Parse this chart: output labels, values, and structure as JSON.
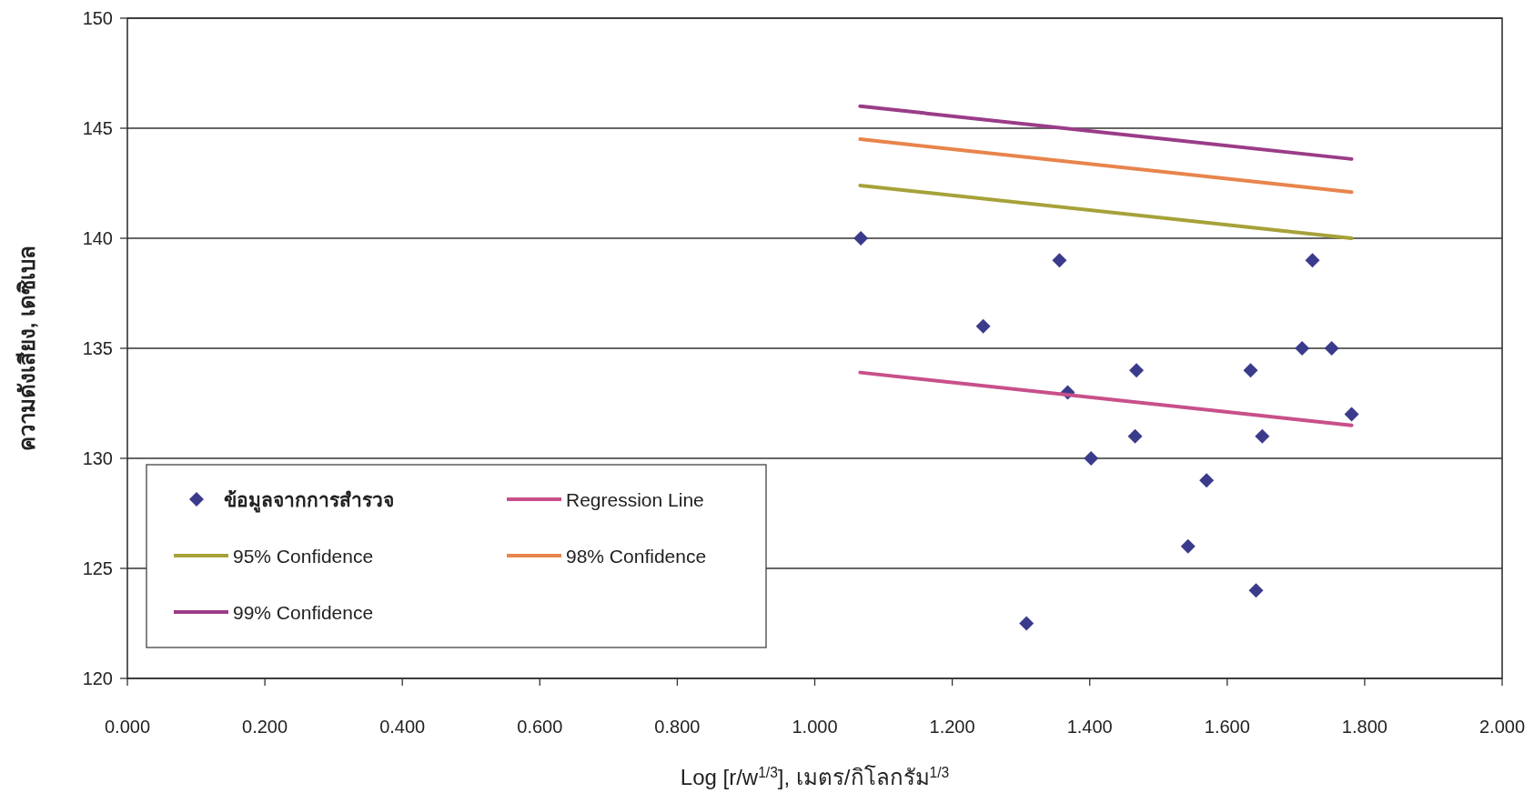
{
  "chart_data": {
    "type": "scatter",
    "xlabel": "Log [r/w$^{1/3}$],  เมตร/กิโลกรัม$^{1/3}$",
    "ylabel": "ความดังเสียง,  เดซิเบล",
    "xlim": [
      0,
      2
    ],
    "ylim": [
      120,
      150
    ],
    "xticks": [
      {
        "value": 0,
        "label": "0.000"
      },
      {
        "value": 0.2,
        "label": "0.200"
      },
      {
        "value": 0.4,
        "label": "0.400"
      },
      {
        "value": 0.6,
        "label": "0.600"
      },
      {
        "value": 0.8,
        "label": "0.800"
      },
      {
        "value": 1,
        "label": "1.000"
      },
      {
        "value": 1.2,
        "label": "1.200"
      },
      {
        "value": 1.4,
        "label": "1.400"
      },
      {
        "value": 1.6,
        "label": "1.600"
      },
      {
        "value": 1.8,
        "label": "1.800"
      },
      {
        "value": 2,
        "label": "2.000"
      }
    ],
    "yticks": [
      120,
      125,
      130,
      135,
      140,
      145,
      150
    ],
    "grid": "y",
    "legend": "bottom left",
    "series": [
      {
        "name": "ข้อมูลจากการสำรวจ",
        "type": "scatter",
        "marker": "diamond",
        "color": "#3b3b8c",
        "x": [
          1.067,
          1.356,
          1.724,
          1.245,
          1.709,
          1.752,
          1.468,
          1.634,
          1.368,
          1.781,
          1.466,
          1.651,
          1.402,
          1.57,
          1.543,
          1.642,
          1.308
        ],
        "values": [
          140,
          139,
          139,
          136,
          135,
          135,
          134,
          134,
          133,
          132,
          131,
          131,
          130,
          129,
          126,
          124,
          122.5
        ]
      },
      {
        "name": "Regression Line",
        "type": "line",
        "color": "#c8508a",
        "x": [
          1.066,
          1.781
        ],
        "values": [
          133.9,
          131.5
        ]
      },
      {
        "name": "95% Confidence",
        "type": "line",
        "color": "#a6a23a",
        "x": [
          1.066,
          1.781
        ],
        "values": [
          142.4,
          140.0
        ]
      },
      {
        "name": "98% Confidence",
        "type": "line",
        "color": "#e8844c",
        "x": [
          1.066,
          1.781
        ],
        "values": [
          144.5,
          142.1
        ]
      },
      {
        "name": "99% Confidence",
        "type": "line",
        "color": "#9a3c88",
        "x": [
          1.066,
          1.781
        ],
        "values": [
          146.0,
          143.6
        ]
      }
    ]
  }
}
